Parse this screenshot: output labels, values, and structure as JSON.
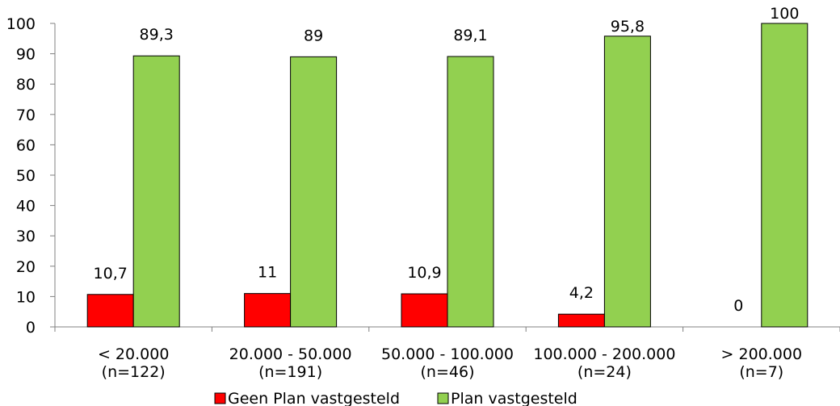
{
  "chart_data": {
    "type": "bar",
    "categories": [
      [
        "< 20.000",
        "(n=122)"
      ],
      [
        "20.000 - 50.000",
        "(n=191)"
      ],
      [
        "50.000 - 100.000",
        "(n=46)"
      ],
      [
        "100.000 - 200.000",
        "(n=24)"
      ],
      [
        "> 200.000",
        "(n=7)"
      ]
    ],
    "series": [
      {
        "name": "Geen Plan vastgesteld",
        "values": [
          10.7,
          11,
          10.9,
          4.2,
          0
        ],
        "labels": [
          "10,7",
          "11",
          "10,9",
          "4,2",
          "0"
        ],
        "color": "#ff0000"
      },
      {
        "name": "Plan vastgesteld",
        "values": [
          89.3,
          89,
          89.1,
          95.8,
          100
        ],
        "labels": [
          "89,3",
          "89",
          "89,1",
          "95,8",
          "100"
        ],
        "color": "#92d050"
      }
    ],
    "ylim": [
      0,
      100
    ],
    "yticks": [
      "0",
      "10",
      "20",
      "30",
      "40",
      "50",
      "60",
      "70",
      "80",
      "90",
      "100"
    ],
    "grid": false,
    "legend_position": "bottom"
  }
}
